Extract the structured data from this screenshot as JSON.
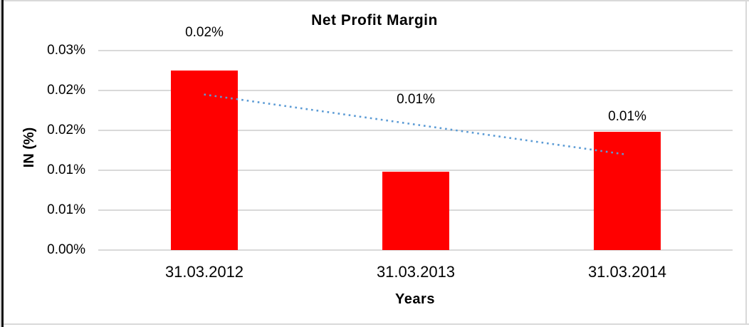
{
  "chart_data": {
    "type": "bar",
    "title": "Net Profit Margin",
    "xlabel": "Years",
    "ylabel": "IN (%)",
    "categories": [
      "31.03.2012",
      "31.03.2013",
      "31.03.2014"
    ],
    "values_pct": [
      0.0225,
      0.0098,
      0.0148
    ],
    "data_labels": [
      "0.02%",
      "0.01%",
      "0.01%"
    ],
    "data_label_positions_pct": [
      0.0272,
      0.0188,
      0.0167
    ],
    "y_ticks_top_to_bottom": [
      "0.03%",
      "0.02%",
      "0.02%",
      "0.01%",
      "0.01%",
      "0.00%"
    ],
    "ylim_pct": [
      0,
      0.025
    ],
    "grid": true,
    "legend": "none",
    "bar_color": "#FF0000",
    "trendline": {
      "type": "linear",
      "style": "dotted",
      "color": "#5B9BD5",
      "start_pct": 0.0195,
      "end_pct": 0.012
    }
  },
  "frame": {
    "border_color": "#D9D9D9",
    "left_edge_color": "#141414",
    "background": "#FFFFFF",
    "grid_color": "#D9D9D9",
    "text_color": "#000000"
  }
}
